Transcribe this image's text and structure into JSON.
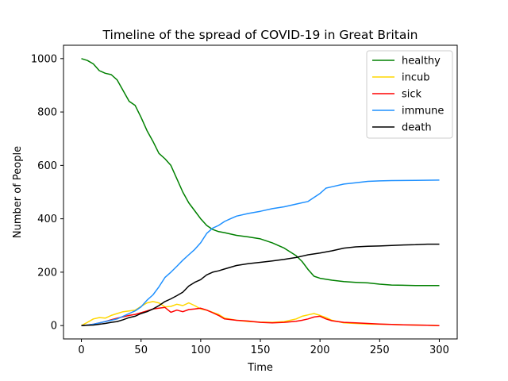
{
  "chart_data": {
    "type": "line",
    "title": "Timeline of the spread of COVID-19 in Great Britain",
    "xlabel": "Time",
    "ylabel": "Number of People",
    "xlim": [
      -15,
      315
    ],
    "ylim": [
      -50,
      1050
    ],
    "xticks": [
      0,
      50,
      100,
      150,
      200,
      250,
      300
    ],
    "yticks": [
      0,
      200,
      400,
      600,
      800,
      1000
    ],
    "legend_position": "top-right",
    "series": [
      {
        "name": "healthy",
        "color": "#008000",
        "x": [
          0,
          5,
          10,
          15,
          20,
          25,
          30,
          35,
          40,
          45,
          50,
          55,
          60,
          65,
          70,
          75,
          80,
          85,
          90,
          95,
          100,
          105,
          110,
          115,
          120,
          130,
          140,
          150,
          160,
          170,
          180,
          185,
          190,
          195,
          200,
          210,
          220,
          230,
          240,
          250,
          260,
          280,
          300
        ],
        "y": [
          1000,
          993,
          980,
          955,
          945,
          940,
          920,
          880,
          840,
          825,
          780,
          730,
          690,
          645,
          625,
          600,
          550,
          500,
          460,
          430,
          400,
          375,
          360,
          352,
          348,
          338,
          332,
          325,
          310,
          290,
          262,
          240,
          210,
          185,
          177,
          170,
          165,
          162,
          160,
          155,
          152,
          150,
          150
        ]
      },
      {
        "name": "incub",
        "color": "#FFD700",
        "x": [
          0,
          5,
          10,
          15,
          20,
          25,
          30,
          35,
          40,
          45,
          50,
          55,
          60,
          65,
          70,
          75,
          80,
          85,
          90,
          95,
          100,
          105,
          110,
          115,
          120,
          130,
          140,
          150,
          160,
          170,
          180,
          185,
          190,
          195,
          200,
          205,
          210,
          220,
          230,
          240,
          250,
          260,
          270,
          280,
          290,
          300
        ],
        "y": [
          0,
          12,
          25,
          30,
          28,
          38,
          45,
          52,
          55,
          58,
          72,
          85,
          90,
          85,
          70,
          72,
          80,
          75,
          85,
          75,
          62,
          58,
          50,
          42,
          28,
          20,
          15,
          13,
          12,
          15,
          25,
          35,
          40,
          45,
          38,
          30,
          20,
          10,
          8,
          6,
          5,
          4,
          3,
          2,
          1,
          0
        ]
      },
      {
        "name": "sick",
        "color": "#FF0000",
        "x": [
          0,
          5,
          10,
          15,
          20,
          25,
          30,
          35,
          40,
          45,
          50,
          55,
          60,
          65,
          70,
          75,
          80,
          85,
          90,
          95,
          100,
          105,
          110,
          115,
          120,
          130,
          140,
          150,
          160,
          170,
          180,
          185,
          190,
          195,
          200,
          205,
          210,
          220,
          230,
          240,
          250,
          260,
          270,
          280,
          290,
          300
        ],
        "y": [
          0,
          2,
          5,
          10,
          15,
          22,
          28,
          33,
          38,
          42,
          48,
          55,
          62,
          65,
          68,
          50,
          58,
          52,
          60,
          62,
          65,
          58,
          48,
          38,
          25,
          20,
          17,
          12,
          10,
          12,
          16,
          20,
          25,
          32,
          35,
          25,
          18,
          12,
          10,
          8,
          6,
          4,
          3,
          2,
          1,
          0
        ]
      },
      {
        "name": "immune",
        "color": "#1E90FF",
        "x": [
          0,
          5,
          10,
          15,
          20,
          25,
          30,
          35,
          40,
          45,
          50,
          55,
          60,
          65,
          70,
          75,
          80,
          85,
          90,
          95,
          100,
          105,
          110,
          115,
          120,
          125,
          130,
          140,
          150,
          160,
          170,
          180,
          190,
          195,
          200,
          205,
          210,
          220,
          230,
          240,
          250,
          260,
          280,
          300
        ],
        "y": [
          0,
          2,
          5,
          10,
          15,
          20,
          25,
          35,
          45,
          55,
          70,
          95,
          115,
          145,
          180,
          200,
          222,
          245,
          265,
          285,
          310,
          345,
          365,
          375,
          390,
          400,
          410,
          420,
          428,
          438,
          445,
          455,
          465,
          480,
          495,
          515,
          520,
          530,
          535,
          540,
          542,
          543,
          544,
          545
        ]
      },
      {
        "name": "death",
        "color": "#000000",
        "x": [
          0,
          5,
          10,
          15,
          20,
          25,
          30,
          35,
          40,
          45,
          50,
          55,
          60,
          65,
          70,
          75,
          80,
          85,
          90,
          95,
          100,
          105,
          110,
          115,
          120,
          130,
          140,
          150,
          160,
          170,
          180,
          190,
          200,
          210,
          220,
          230,
          240,
          250,
          260,
          270,
          280,
          290,
          300
        ],
        "y": [
          0,
          1,
          2,
          5,
          8,
          12,
          15,
          22,
          30,
          35,
          45,
          52,
          62,
          75,
          90,
          100,
          112,
          125,
          148,
          162,
          172,
          190,
          200,
          205,
          212,
          225,
          232,
          237,
          242,
          248,
          255,
          265,
          272,
          280,
          290,
          295,
          297,
          298,
          300,
          302,
          303,
          305,
          305
        ]
      }
    ]
  }
}
